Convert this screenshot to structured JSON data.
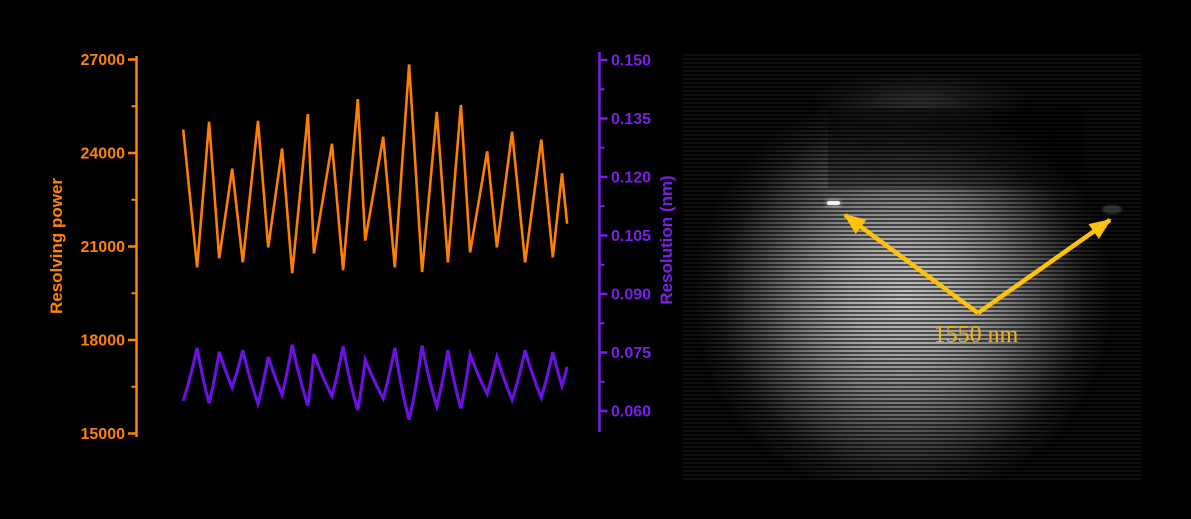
{
  "figure": {
    "background_color": "#000000",
    "panels": {
      "interference_image": {
        "description": "interference-fringe-pattern",
        "annotation": "1550 nm",
        "annotation_color": "#F0B713",
        "arrow_color": "#FFC20A"
      }
    }
  },
  "chart_data": {
    "type": "line",
    "title": "",
    "xlabel": "",
    "x_axis_visible": false,
    "grid": false,
    "legend": "none",
    "x_unit": "fraction of plot width (x axis unlabeled in figure)",
    "relation": "resolution_nm = 1550 / resolving_power",
    "y_left": {
      "label": "Resolving power",
      "color": "#FF8200",
      "lim": [
        15000,
        27000
      ],
      "ticks": [
        27000,
        24000,
        21000,
        18000,
        15000
      ],
      "tick_labels": [
        "27000",
        "24000",
        "21000",
        "18000",
        "15000"
      ]
    },
    "y_right": {
      "label": "Resolution (nm)",
      "color": "#7B1FE8",
      "lim": [
        0.06,
        0.15
      ],
      "ticks": [
        0.15,
        0.135,
        0.12,
        0.105,
        0.09,
        0.075,
        0.06
      ],
      "tick_labels": [
        "0.150",
        "0.135",
        "0.120",
        "0.105",
        "0.090",
        "0.075",
        "0.060"
      ]
    },
    "series": [
      {
        "name": "Resolving power",
        "axis": "left",
        "color": "#FF7F00",
        "interpolation": "linear",
        "x": [
          0.1,
          0.13,
          0.156,
          0.178,
          0.206,
          0.229,
          0.262,
          0.284,
          0.314,
          0.336,
          0.37,
          0.383,
          0.422,
          0.446,
          0.478,
          0.494,
          0.533,
          0.558,
          0.589,
          0.617,
          0.649,
          0.673,
          0.701,
          0.721,
          0.758,
          0.779,
          0.812,
          0.84,
          0.875,
          0.9,
          0.92,
          0.931
        ],
        "y": [
          24750,
          20330,
          25000,
          20620,
          23500,
          20490,
          25030,
          20970,
          24140,
          20140,
          25250,
          20780,
          24300,
          20240,
          25730,
          21190,
          24520,
          20330,
          26840,
          20180,
          25320,
          20490,
          25540,
          20810,
          24050,
          20970,
          24680,
          20490,
          24430,
          20650,
          23350,
          21730
        ]
      },
      {
        "name": "Resolution (nm)",
        "axis": "right",
        "color": "#6C10E4",
        "interpolation": "harmonic",
        "x": [
          0.1,
          0.13,
          0.156,
          0.178,
          0.206,
          0.229,
          0.262,
          0.284,
          0.314,
          0.336,
          0.37,
          0.383,
          0.422,
          0.446,
          0.478,
          0.494,
          0.533,
          0.558,
          0.589,
          0.617,
          0.649,
          0.673,
          0.701,
          0.721,
          0.758,
          0.779,
          0.812,
          0.84,
          0.875,
          0.9,
          0.92,
          0.931
        ],
        "y": [
          0.0626,
          0.0762,
          0.062,
          0.0752,
          0.066,
          0.0756,
          0.0619,
          0.0739,
          0.0642,
          0.077,
          0.0614,
          0.0746,
          0.0638,
          0.0766,
          0.0602,
          0.0731,
          0.0632,
          0.0762,
          0.0578,
          0.0768,
          0.0612,
          0.0756,
          0.0607,
          0.0745,
          0.0644,
          0.0739,
          0.0628,
          0.0756,
          0.0634,
          0.0751,
          0.0664,
          0.0713
        ]
      }
    ]
  }
}
